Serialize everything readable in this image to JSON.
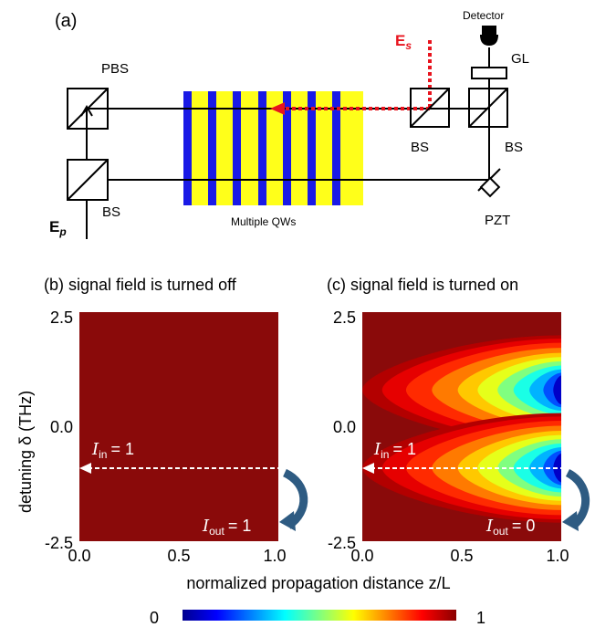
{
  "panel_a": {
    "label": "(a)",
    "pbs": "PBS",
    "bs_left": "BS",
    "bs_mid": "BS",
    "bs_right": "BS",
    "gl": "GL",
    "detector": "Detector",
    "es_main": "E",
    "es_sub": "s",
    "ep_main": "E",
    "ep_sub": "p",
    "qws": "Multiple QWs",
    "pzt": "PZT",
    "colors": {
      "qw_blue": "#1a1ae6",
      "qw_yellow": "#ffff1a",
      "signal": "#e8141e"
    }
  },
  "panel_b": {
    "title": "(b) signal field is turned off",
    "iin_main": "I",
    "iin_sub": "in",
    "iin_eq": "= 1",
    "iout_main": "I",
    "iout_sub": "out",
    "iout_eq": "= 1"
  },
  "panel_c": {
    "title": "(c) signal field is turned on",
    "iin_main": "I",
    "iin_sub": "in",
    "iin_eq": "= 1",
    "iout_main": "I",
    "iout_sub": "out",
    "iout_eq": "= 0"
  },
  "axes": {
    "ylabel": "detuning δ (THz)",
    "xlabel": "normalized propagation distance z/L",
    "y_ticks": [
      "2.5",
      "0.0",
      "-2.5"
    ],
    "x_ticks": [
      "0.0",
      "0.5",
      "1.0"
    ]
  },
  "colorbar": {
    "min": "0",
    "max": "1"
  },
  "chart_data": [
    {
      "type": "heatmap",
      "title": "(b) signal field is turned off",
      "xlabel": "normalized propagation distance z/L",
      "ylabel": "detuning δ (THz)",
      "xlim": [
        0.0,
        1.0
      ],
      "ylim": [
        -2.5,
        2.5
      ],
      "value_range": [
        0,
        1
      ],
      "values": "uniform 1 over the whole domain",
      "annotations": [
        "I_in = 1 at δ = -0.9 (z/L = 0)",
        "I_out = 1"
      ]
    },
    {
      "type": "heatmap",
      "title": "(c) signal field is turned on",
      "xlabel": "normalized propagation distance z/L",
      "ylabel": "detuning δ (THz)",
      "xlim": [
        0.0,
        1.0
      ],
      "ylim": [
        -2.5,
        2.5
      ],
      "value_range": [
        0,
        1
      ],
      "absorption_bands": [
        {
          "center_delta": 0.8,
          "min_value_at_z1": 0.0
        },
        {
          "center_delta": -0.9,
          "min_value_at_z1": 0.0
        }
      ],
      "annotations": [
        "I_in = 1 at δ = -0.9 (z/L = 0)",
        "I_out = 0"
      ]
    }
  ]
}
